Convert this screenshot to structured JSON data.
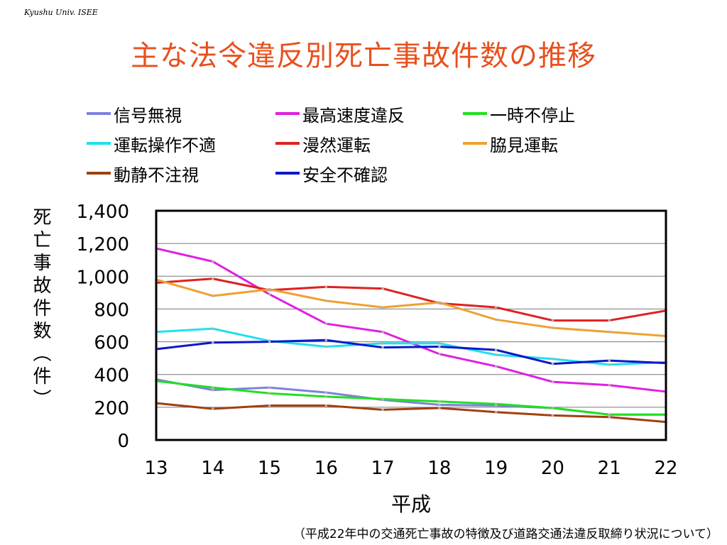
{
  "header": {
    "credit": "Kyushu Univ. ISEE",
    "title": "主な法令違反別死亡事故件数の推移"
  },
  "footer": {
    "source": "（平成22年中の交通死亡事故の特徴及び道路交通法違反取締り状況について）"
  },
  "chart_data": {
    "type": "line",
    "xlabel": "平成",
    "ylabel": "死亡事故件数（件）",
    "x": [
      13,
      14,
      15,
      16,
      17,
      18,
      19,
      20,
      21,
      22
    ],
    "ylim": [
      0,
      1400
    ],
    "yticks": [
      0,
      200,
      400,
      600,
      800,
      1000,
      1200,
      1400
    ],
    "ytick_labels": [
      "0",
      "200",
      "400",
      "600",
      "800",
      "1,000",
      "1,200",
      "1,400"
    ],
    "grid": true,
    "legend_position": "top",
    "series": [
      {
        "name": "信号無視",
        "color": "#8080e0",
        "values": [
          370,
          305,
          320,
          290,
          245,
          215,
          210,
          195,
          155,
          155
        ]
      },
      {
        "name": "最高速度違反",
        "color": "#e020e0",
        "values": [
          1170,
          1090,
          890,
          710,
          660,
          525,
          450,
          355,
          335,
          295
        ]
      },
      {
        "name": "一時不停止",
        "color": "#20e020",
        "values": [
          360,
          320,
          285,
          265,
          250,
          235,
          220,
          195,
          155,
          155
        ]
      },
      {
        "name": "運転操作不適",
        "color": "#20e0ee",
        "values": [
          660,
          680,
          605,
          570,
          590,
          590,
          520,
          495,
          460,
          475
        ]
      },
      {
        "name": "漫然運転",
        "color": "#e02020",
        "values": [
          960,
          985,
          915,
          935,
          925,
          835,
          810,
          730,
          730,
          790
        ]
      },
      {
        "name": "脇見運転",
        "color": "#f0a030",
        "values": [
          980,
          880,
          920,
          850,
          810,
          840,
          735,
          685,
          660,
          635
        ]
      },
      {
        "name": "動静不注視",
        "color": "#a04010",
        "values": [
          225,
          190,
          210,
          210,
          185,
          195,
          170,
          150,
          140,
          110
        ]
      },
      {
        "name": "安全不確認",
        "color": "#0a18c8",
        "values": [
          555,
          595,
          600,
          610,
          565,
          570,
          550,
          465,
          485,
          470
        ]
      }
    ]
  }
}
